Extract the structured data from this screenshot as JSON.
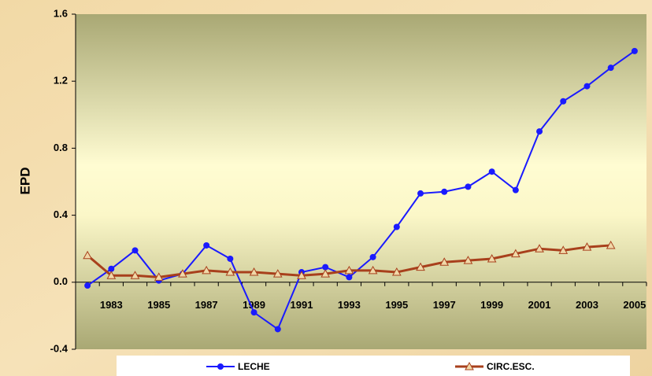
{
  "chart_data": {
    "type": "line",
    "y_label": "EPD",
    "categories": [
      null,
      "1983",
      null,
      "1985",
      null,
      "1987",
      null,
      "1989",
      null,
      "1991",
      null,
      "1993",
      null,
      "1995",
      null,
      "1997",
      null,
      "1999",
      null,
      "2001",
      null,
      "2003",
      null,
      "2005"
    ],
    "series": [
      {
        "name": "LECHE",
        "color": "#1a1aff",
        "marker": "circle",
        "values": [
          -0.02,
          0.08,
          0.19,
          0.01,
          0.05,
          0.22,
          0.14,
          -0.18,
          -0.28,
          0.06,
          0.09,
          0.03,
          0.15,
          0.33,
          0.53,
          0.54,
          0.57,
          0.66,
          0.55,
          0.9,
          1.08,
          1.17,
          1.28,
          1.38
        ]
      },
      {
        "name": "CIRC.ESC.",
        "color": "#a8401c",
        "marker": "triangle",
        "values": [
          0.16,
          0.04,
          0.04,
          0.03,
          0.05,
          0.07,
          0.06,
          0.06,
          0.05,
          0.04,
          0.05,
          0.07,
          0.07,
          0.06,
          0.09,
          0.12,
          0.13,
          0.14,
          0.17,
          0.2,
          0.19,
          0.21,
          0.22,
          null
        ]
      }
    ],
    "ylim": [
      -0.4,
      1.6
    ],
    "yticks": [
      -0.4,
      {
        "value": 0,
        "label": "0.0"
      },
      0.4,
      0.8,
      1.2,
      1.6
    ],
    "legend": "bottom"
  }
}
